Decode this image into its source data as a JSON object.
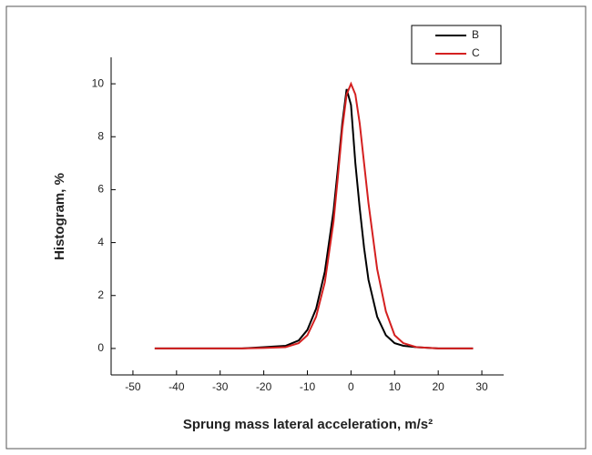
{
  "chart_data": {
    "type": "line",
    "x_label": "Sprung mass lateral acceleration, m/s²",
    "y_label": "Histogram, %",
    "x": [
      -45,
      -40,
      -35,
      -30,
      -25,
      -20,
      -15,
      -12,
      -10,
      -8,
      -6,
      -4,
      -3,
      -2,
      -1,
      0,
      1,
      2,
      3,
      4,
      6,
      8,
      10,
      12,
      15,
      20,
      25,
      28
    ],
    "series": [
      {
        "name": "B",
        "color": "#000000",
        "values": [
          0,
          0,
          0,
          0,
          0,
          0.05,
          0.1,
          0.3,
          0.7,
          1.5,
          2.9,
          5.2,
          6.8,
          8.5,
          9.8,
          9.2,
          7,
          5.3,
          3.8,
          2.6,
          1.2,
          0.5,
          0.2,
          0.1,
          0.05,
          0,
          0,
          0
        ]
      },
      {
        "name": "C",
        "color": "#d42020",
        "values": [
          0,
          0,
          0,
          0,
          0,
          0.02,
          0.05,
          0.2,
          0.5,
          1.2,
          2.5,
          4.8,
          6.5,
          8.3,
          9.6,
          10,
          9.6,
          8.5,
          7,
          5.5,
          3,
          1.4,
          0.5,
          0.2,
          0.05,
          0,
          0,
          0
        ]
      }
    ],
    "xlim": [
      -55,
      35
    ],
    "xticks": [
      -50,
      -40,
      -30,
      -20,
      -10,
      0,
      10,
      20,
      30
    ],
    "ylim": [
      -1,
      11
    ],
    "yticks": [
      0,
      2,
      4,
      6,
      8,
      10
    ],
    "legend": "top-right"
  }
}
